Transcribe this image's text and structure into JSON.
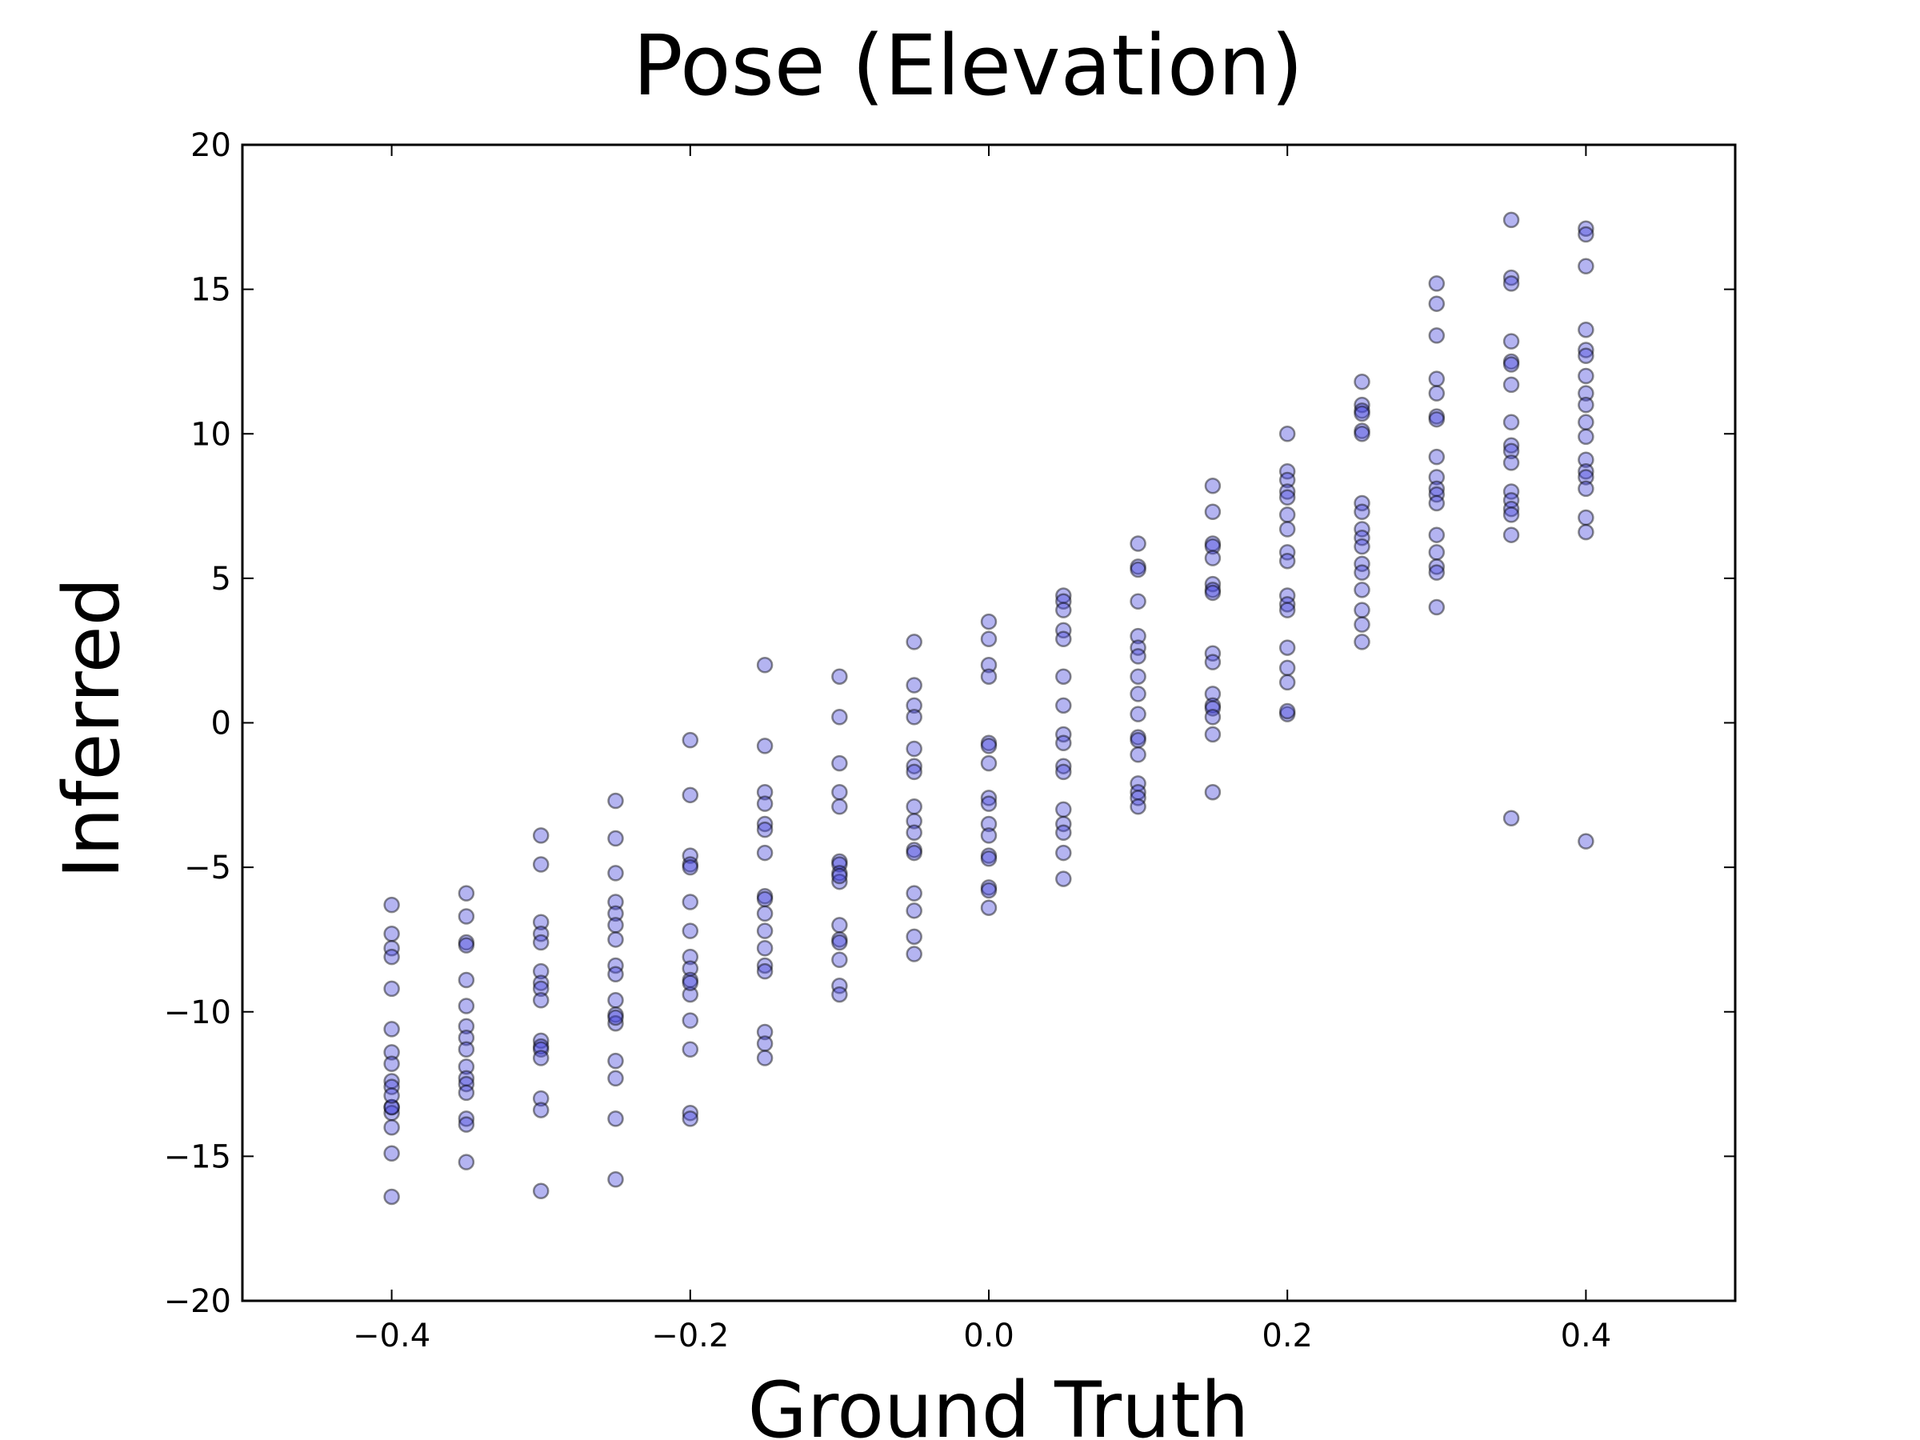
{
  "chart_data": {
    "type": "scatter",
    "title": "Pose (Elevation)",
    "xlabel": "Ground Truth",
    "ylabel": "Inferred",
    "xlim": [
      -0.5,
      0.5
    ],
    "ylim": [
      -20,
      20
    ],
    "xticks": [
      -0.4,
      -0.2,
      0.0,
      0.2,
      0.4
    ],
    "xtick_labels": [
      "−0.4",
      "−0.2",
      "0.0",
      "0.2",
      "0.4"
    ],
    "yticks": [
      -20,
      -15,
      -10,
      -5,
      0,
      5,
      10,
      15,
      20
    ],
    "ytick_labels": [
      "−20",
      "−15",
      "−10",
      "−5",
      "0",
      "5",
      "10",
      "15",
      "20"
    ],
    "grid": false,
    "marker_color": "#4444dd",
    "marker_alpha": 0.4,
    "series": [
      {
        "x": [
          -0.4,
          -0.4,
          -0.4,
          -0.4,
          -0.4,
          -0.4,
          -0.4,
          -0.4,
          -0.4,
          -0.4,
          -0.4,
          -0.4,
          -0.4,
          -0.4,
          -0.4,
          -0.4,
          -0.4,
          -0.35,
          -0.35,
          -0.35,
          -0.35,
          -0.35,
          -0.35,
          -0.35,
          -0.35,
          -0.35,
          -0.35,
          -0.35,
          -0.35,
          -0.35,
          -0.35,
          -0.35,
          -0.35,
          -0.3,
          -0.3,
          -0.3,
          -0.3,
          -0.3,
          -0.3,
          -0.3,
          -0.3,
          -0.3,
          -0.3,
          -0.3,
          -0.3,
          -0.3,
          -0.3,
          -0.3,
          -0.3,
          -0.25,
          -0.25,
          -0.25,
          -0.25,
          -0.25,
          -0.25,
          -0.25,
          -0.25,
          -0.25,
          -0.25,
          -0.25,
          -0.25,
          -0.25,
          -0.25,
          -0.25,
          -0.25,
          -0.25,
          -0.2,
          -0.2,
          -0.2,
          -0.2,
          -0.2,
          -0.2,
          -0.2,
          -0.2,
          -0.2,
          -0.2,
          -0.2,
          -0.2,
          -0.2,
          -0.2,
          -0.2,
          -0.2,
          -0.15,
          -0.15,
          -0.15,
          -0.15,
          -0.15,
          -0.15,
          -0.15,
          -0.15,
          -0.15,
          -0.15,
          -0.15,
          -0.15,
          -0.15,
          -0.15,
          -0.15,
          -0.15,
          -0.15,
          -0.1,
          -0.1,
          -0.1,
          -0.1,
          -0.1,
          -0.1,
          -0.1,
          -0.1,
          -0.1,
          -0.1,
          -0.1,
          -0.1,
          -0.1,
          -0.1,
          -0.1,
          -0.1,
          -0.05,
          -0.05,
          -0.05,
          -0.05,
          -0.05,
          -0.05,
          -0.05,
          -0.05,
          -0.05,
          -0.05,
          -0.05,
          -0.05,
          -0.05,
          -0.05,
          -0.05,
          -0.05,
          0.0,
          0.0,
          0.0,
          0.0,
          0.0,
          0.0,
          0.0,
          0.0,
          0.0,
          0.0,
          0.0,
          0.0,
          0.0,
          0.0,
          0.0,
          0.0,
          0.05,
          0.05,
          0.05,
          0.05,
          0.05,
          0.05,
          0.05,
          0.05,
          0.05,
          0.05,
          0.05,
          0.05,
          0.05,
          0.05,
          0.05,
          0.05,
          0.1,
          0.1,
          0.1,
          0.1,
          0.1,
          0.1,
          0.1,
          0.1,
          0.1,
          0.1,
          0.1,
          0.1,
          0.1,
          0.1,
          0.1,
          0.1,
          0.1,
          0.15,
          0.15,
          0.15,
          0.15,
          0.15,
          0.15,
          0.15,
          0.15,
          0.15,
          0.15,
          0.15,
          0.15,
          0.15,
          0.15,
          0.15,
          0.15,
          0.2,
          0.2,
          0.2,
          0.2,
          0.2,
          0.2,
          0.2,
          0.2,
          0.2,
          0.2,
          0.2,
          0.2,
          0.2,
          0.2,
          0.2,
          0.2,
          0.2,
          0.25,
          0.25,
          0.25,
          0.25,
          0.25,
          0.25,
          0.25,
          0.25,
          0.25,
          0.25,
          0.25,
          0.25,
          0.25,
          0.25,
          0.25,
          0.25,
          0.25,
          0.3,
          0.3,
          0.3,
          0.3,
          0.3,
          0.3,
          0.3,
          0.3,
          0.3,
          0.3,
          0.3,
          0.3,
          0.3,
          0.3,
          0.3,
          0.3,
          0.3,
          0.35,
          0.35,
          0.35,
          0.35,
          0.35,
          0.35,
          0.35,
          0.35,
          0.35,
          0.35,
          0.35,
          0.35,
          0.35,
          0.35,
          0.35,
          0.35,
          0.35,
          0.4,
          0.4,
          0.4,
          0.4,
          0.4,
          0.4,
          0.4,
          0.4,
          0.4,
          0.4,
          0.4,
          0.4,
          0.4,
          0.4,
          0.4,
          0.4,
          0.4,
          0.4
        ],
        "y": [
          -6.3,
          -7.3,
          -7.8,
          -8.1,
          -9.2,
          -10.6,
          -11.4,
          -11.8,
          -12.4,
          -12.6,
          -13.3,
          -13.5,
          -14.0,
          -14.9,
          -16.4,
          -13.3,
          -12.9,
          -5.9,
          -6.7,
          -7.6,
          -7.7,
          -8.9,
          -9.8,
          -10.5,
          -10.9,
          -11.3,
          -11.9,
          -12.3,
          -12.5,
          -12.8,
          -13.7,
          -13.9,
          -15.2,
          -3.9,
          -4.9,
          -6.9,
          -7.3,
          -7.6,
          -8.6,
          -9.0,
          -9.2,
          -9.6,
          -11.0,
          -11.2,
          -11.3,
          -11.6,
          -13.0,
          -13.4,
          -16.2,
          -2.7,
          -4.0,
          -5.2,
          -6.2,
          -6.6,
          -7.0,
          -7.5,
          -8.4,
          -8.7,
          -9.6,
          -10.1,
          -10.4,
          -10.2,
          -11.7,
          -12.3,
          -13.7,
          -15.8,
          -0.6,
          -2.5,
          -4.6,
          -4.9,
          -5.0,
          -6.2,
          -7.2,
          -8.1,
          -8.5,
          -8.9,
          -9.4,
          -10.3,
          -11.3,
          -13.5,
          -13.7,
          -9.0,
          2.0,
          -0.8,
          -2.4,
          -2.8,
          -3.5,
          -3.7,
          -4.5,
          -6.0,
          -6.1,
          -6.6,
          -7.2,
          -7.8,
          -8.4,
          -8.6,
          -10.7,
          -11.1,
          -11.6,
          1.6,
          0.2,
          -1.4,
          -2.4,
          -2.9,
          -4.8,
          -4.9,
          -5.2,
          -5.5,
          -7.0,
          -7.5,
          -7.6,
          -8.2,
          -9.1,
          -9.4,
          -5.3,
          2.8,
          1.3,
          0.6,
          0.2,
          -0.9,
          -1.5,
          -1.7,
          -2.9,
          -3.4,
          -3.8,
          -4.4,
          -4.5,
          -5.9,
          -6.5,
          -7.4,
          -8.0,
          3.5,
          2.9,
          2.0,
          1.6,
          -0.7,
          -0.8,
          -1.4,
          -2.6,
          -2.8,
          -3.5,
          -3.9,
          -4.6,
          -4.7,
          -5.7,
          -5.8,
          -6.4,
          4.4,
          4.2,
          3.9,
          3.2,
          2.9,
          1.6,
          0.6,
          -0.4,
          -0.7,
          -1.5,
          -1.7,
          -3.0,
          -3.5,
          -3.8,
          -4.5,
          -5.4,
          6.2,
          5.4,
          5.3,
          4.2,
          3.0,
          2.6,
          2.3,
          1.6,
          1.0,
          0.3,
          -0.5,
          -0.6,
          -1.1,
          -2.1,
          -2.4,
          -2.6,
          -2.9,
          8.2,
          7.3,
          6.2,
          6.1,
          5.7,
          4.8,
          4.6,
          4.5,
          2.4,
          2.1,
          1.0,
          0.6,
          0.5,
          0.2,
          -0.4,
          -2.4,
          10.0,
          8.7,
          8.4,
          8.0,
          7.8,
          7.2,
          6.7,
          5.9,
          5.6,
          4.4,
          4.1,
          3.9,
          2.6,
          1.9,
          1.4,
          0.3,
          0.4,
          11.8,
          11.0,
          10.8,
          10.7,
          10.1,
          10.0,
          7.6,
          7.3,
          6.7,
          6.4,
          6.1,
          5.5,
          5.2,
          4.6,
          3.9,
          3.4,
          2.8,
          15.2,
          14.5,
          13.4,
          11.9,
          11.4,
          10.6,
          10.5,
          9.2,
          8.5,
          8.1,
          7.9,
          7.6,
          6.5,
          5.9,
          5.4,
          5.2,
          4.0,
          17.4,
          15.4,
          15.2,
          13.2,
          12.5,
          12.4,
          11.7,
          10.4,
          9.6,
          9.4,
          9.0,
          8.0,
          7.7,
          7.4,
          7.2,
          6.5,
          -3.3,
          17.1,
          16.9,
          15.8,
          13.6,
          12.9,
          12.7,
          12.0,
          11.4,
          11.0,
          10.4,
          9.9,
          9.1,
          8.7,
          8.5,
          8.1,
          7.1,
          6.6,
          -4.1
        ]
      }
    ]
  }
}
